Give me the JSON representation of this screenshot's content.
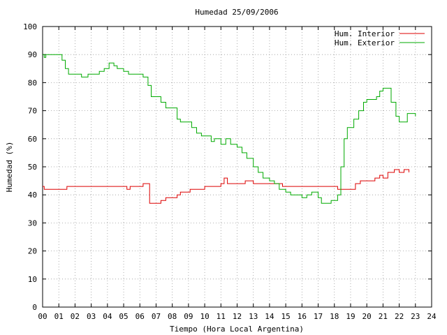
{
  "chart_data": {
    "type": "line",
    "title": "Humedad 25/09/2006",
    "xlabel": "Tiempo (Hora Local Argentina)",
    "ylabel": "Humedad (%)",
    "xlim": [
      0,
      24
    ],
    "ylim": [
      0,
      100
    ],
    "x_ticks": [
      "00",
      "01",
      "02",
      "03",
      "04",
      "05",
      "06",
      "07",
      "08",
      "09",
      "10",
      "11",
      "12",
      "13",
      "14",
      "15",
      "16",
      "17",
      "18",
      "19",
      "20",
      "21",
      "22",
      "23",
      "24"
    ],
    "y_ticks": [
      "0",
      "10",
      "20",
      "30",
      "40",
      "50",
      "60",
      "70",
      "80",
      "90",
      "100"
    ],
    "grid": true,
    "legend_position": "top-right",
    "series": [
      {
        "name": "Hum. Interior",
        "color": "#dd0000",
        "points": [
          [
            0.0,
            43
          ],
          [
            0.1,
            42
          ],
          [
            0.5,
            42
          ],
          [
            1.0,
            42
          ],
          [
            1.5,
            43
          ],
          [
            2.0,
            43
          ],
          [
            3.0,
            43
          ],
          [
            4.0,
            43
          ],
          [
            4.5,
            43
          ],
          [
            5.0,
            43
          ],
          [
            5.2,
            42
          ],
          [
            5.4,
            43
          ],
          [
            6.0,
            43
          ],
          [
            6.2,
            44
          ],
          [
            6.5,
            44
          ],
          [
            6.6,
            37
          ],
          [
            7.0,
            37
          ],
          [
            7.3,
            38
          ],
          [
            7.6,
            39
          ],
          [
            8.0,
            39
          ],
          [
            8.3,
            40
          ],
          [
            8.5,
            41
          ],
          [
            8.8,
            41
          ],
          [
            9.1,
            42
          ],
          [
            9.5,
            42
          ],
          [
            10.0,
            43
          ],
          [
            10.8,
            43
          ],
          [
            11.0,
            44
          ],
          [
            11.2,
            46
          ],
          [
            11.4,
            44
          ],
          [
            11.8,
            44
          ],
          [
            12.0,
            44
          ],
          [
            12.5,
            45
          ],
          [
            13.0,
            44
          ],
          [
            13.5,
            44
          ],
          [
            14.0,
            44
          ],
          [
            14.5,
            44
          ],
          [
            14.8,
            43
          ],
          [
            15.0,
            43
          ],
          [
            16.0,
            43
          ],
          [
            17.0,
            43
          ],
          [
            17.5,
            43
          ],
          [
            18.0,
            43
          ],
          [
            18.2,
            42
          ],
          [
            18.6,
            42
          ],
          [
            19.0,
            42
          ],
          [
            19.3,
            44
          ],
          [
            19.6,
            45
          ],
          [
            20.0,
            45
          ],
          [
            20.5,
            46
          ],
          [
            20.8,
            47
          ],
          [
            21.0,
            46
          ],
          [
            21.3,
            48
          ],
          [
            21.7,
            49
          ],
          [
            22.0,
            48
          ],
          [
            22.3,
            49
          ],
          [
            22.6,
            48
          ]
        ]
      },
      {
        "name": "Hum. Exterior",
        "color": "#00aa00",
        "points": [
          [
            0.0,
            90
          ],
          [
            0.1,
            89
          ],
          [
            0.2,
            90
          ],
          [
            0.5,
            90
          ],
          [
            1.0,
            90
          ],
          [
            1.2,
            88
          ],
          [
            1.4,
            85
          ],
          [
            1.6,
            83
          ],
          [
            2.0,
            83
          ],
          [
            2.4,
            82
          ],
          [
            2.8,
            83
          ],
          [
            3.2,
            83
          ],
          [
            3.5,
            84
          ],
          [
            3.8,
            85
          ],
          [
            4.0,
            85
          ],
          [
            4.1,
            87
          ],
          [
            4.4,
            86
          ],
          [
            4.6,
            85
          ],
          [
            5.0,
            84
          ],
          [
            5.3,
            83
          ],
          [
            5.8,
            83
          ],
          [
            6.0,
            83
          ],
          [
            6.2,
            82
          ],
          [
            6.5,
            79
          ],
          [
            6.7,
            75
          ],
          [
            7.0,
            75
          ],
          [
            7.3,
            73
          ],
          [
            7.6,
            71
          ],
          [
            8.0,
            71
          ],
          [
            8.3,
            67
          ],
          [
            8.5,
            66
          ],
          [
            9.0,
            66
          ],
          [
            9.2,
            64
          ],
          [
            9.5,
            62
          ],
          [
            9.8,
            61
          ],
          [
            10.0,
            61
          ],
          [
            10.4,
            59
          ],
          [
            10.6,
            60
          ],
          [
            11.0,
            58
          ],
          [
            11.3,
            60
          ],
          [
            11.6,
            58
          ],
          [
            12.0,
            57
          ],
          [
            12.3,
            55
          ],
          [
            12.6,
            53
          ],
          [
            13.0,
            50
          ],
          [
            13.3,
            48
          ],
          [
            13.6,
            46
          ],
          [
            14.0,
            45
          ],
          [
            14.3,
            44
          ],
          [
            14.6,
            42
          ],
          [
            15.0,
            41
          ],
          [
            15.3,
            40
          ],
          [
            15.6,
            40
          ],
          [
            16.0,
            39
          ],
          [
            16.3,
            40
          ],
          [
            16.6,
            41
          ],
          [
            17.0,
            39
          ],
          [
            17.2,
            37
          ],
          [
            17.5,
            37
          ],
          [
            17.8,
            38
          ],
          [
            18.0,
            38
          ],
          [
            18.2,
            40
          ],
          [
            18.4,
            50
          ],
          [
            18.6,
            60
          ],
          [
            18.8,
            64
          ],
          [
            19.0,
            64
          ],
          [
            19.2,
            67
          ],
          [
            19.5,
            70
          ],
          [
            19.8,
            73
          ],
          [
            20.0,
            74
          ],
          [
            20.3,
            74
          ],
          [
            20.6,
            75
          ],
          [
            20.8,
            77
          ],
          [
            21.0,
            78
          ],
          [
            21.3,
            78
          ],
          [
            21.5,
            73
          ],
          [
            21.8,
            68
          ],
          [
            22.0,
            66
          ],
          [
            22.3,
            66
          ],
          [
            22.5,
            69
          ],
          [
            22.8,
            69
          ],
          [
            23.0,
            68
          ]
        ]
      }
    ]
  }
}
